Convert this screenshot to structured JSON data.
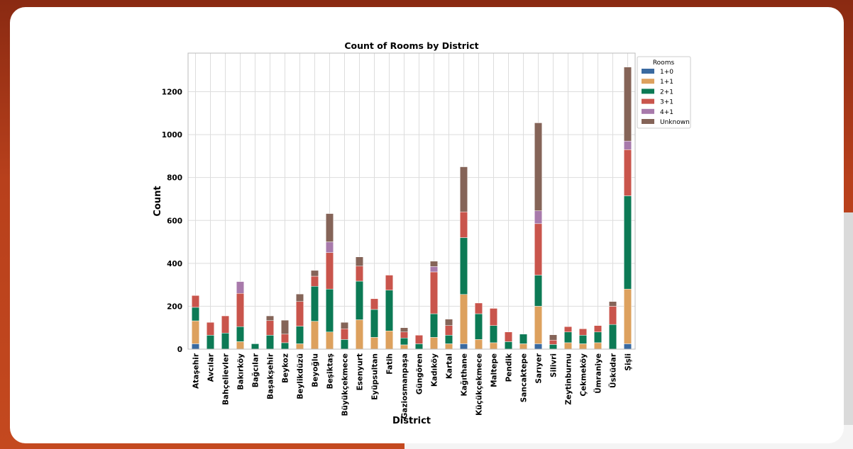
{
  "chart_data": {
    "type": "bar",
    "stacked": true,
    "title": "Count of Rooms by District",
    "xlabel": "District",
    "ylabel": "Count",
    "ylim": [
      0,
      1380
    ],
    "yticks": [
      0,
      200,
      400,
      600,
      800,
      1000,
      1200
    ],
    "grid": true,
    "legend": {
      "title": "Rooms",
      "placement": "outside-top-right"
    },
    "categories": [
      "Ataşehir",
      "Avcılar",
      "Bahçelievler",
      "Bakırköy",
      "Bağcılar",
      "Başakşehir",
      "Beykoz",
      "Beylikdüzü",
      "Beyoğlu",
      "Beşiktaş",
      "Büyükçekmece",
      "Esenyurt",
      "Eyüpsultan",
      "Fatih",
      "Gaziosmanpaşa",
      "Güngören",
      "Kadıköy",
      "Kartal",
      "Kağıthane",
      "Küçükçekmece",
      "Maltepe",
      "Pendik",
      "Sancaktepe",
      "Sarıyer",
      "Silivri",
      "Zeytinburnu",
      "Çekmeköy",
      "Ümraniye",
      "Üsküdar",
      "Şişli"
    ],
    "series": [
      {
        "name": "1+0",
        "color": "#3a6aa0",
        "values": [
          25,
          0,
          0,
          0,
          0,
          0,
          0,
          0,
          0,
          0,
          0,
          0,
          0,
          0,
          0,
          0,
          0,
          0,
          25,
          0,
          0,
          0,
          0,
          25,
          0,
          0,
          0,
          0,
          0,
          25
        ]
      },
      {
        "name": "1+1",
        "color": "#dda15e",
        "values": [
          107,
          0,
          0,
          35,
          0,
          0,
          0,
          25,
          130,
          80,
          0,
          137,
          55,
          85,
          20,
          0,
          55,
          25,
          230,
          45,
          30,
          0,
          25,
          175,
          0,
          30,
          25,
          30,
          0,
          255
        ]
      },
      {
        "name": "2+1",
        "color": "#0c7a55",
        "values": [
          63,
          65,
          75,
          70,
          25,
          65,
          30,
          82,
          163,
          200,
          45,
          180,
          130,
          190,
          32,
          25,
          110,
          40,
          265,
          120,
          80,
          35,
          45,
          145,
          22,
          50,
          40,
          50,
          115,
          435
        ]
      },
      {
        "name": "3+1",
        "color": "#c9554c",
        "values": [
          55,
          60,
          80,
          155,
          0,
          68,
          40,
          115,
          47,
          170,
          50,
          70,
          50,
          70,
          28,
          40,
          195,
          45,
          120,
          50,
          80,
          45,
          0,
          240,
          20,
          25,
          30,
          30,
          85,
          215
        ]
      },
      {
        "name": "4+1",
        "color": "#a87aab",
        "values": [
          0,
          0,
          0,
          55,
          0,
          0,
          0,
          0,
          0,
          50,
          0,
          0,
          0,
          0,
          0,
          0,
          25,
          0,
          0,
          0,
          0,
          0,
          0,
          60,
          0,
          0,
          0,
          0,
          0,
          40
        ]
      },
      {
        "name": "Unknown",
        "color": "#856458",
        "values": [
          0,
          0,
          0,
          0,
          0,
          22,
          65,
          35,
          27,
          132,
          30,
          43,
          0,
          0,
          20,
          0,
          25,
          30,
          210,
          0,
          0,
          0,
          0,
          410,
          25,
          0,
          0,
          0,
          22,
          345
        ]
      }
    ]
  }
}
